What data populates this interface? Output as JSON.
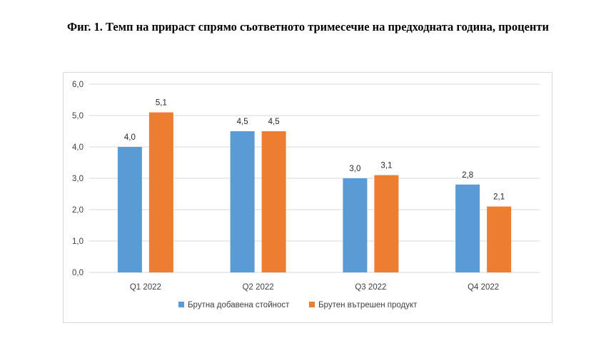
{
  "figure": {
    "title": "Фиг. 1. Темп на прираст спрямо съответното тримесечие на предходната година, проценти"
  },
  "chart_data": {
    "type": "bar",
    "title": "",
    "xlabel": "",
    "ylabel": "",
    "categories": [
      "Q1 2022",
      "Q2 2022",
      "Q3 2022",
      "Q4 2022"
    ],
    "series": [
      {
        "name": "Брутна добавена стойност",
        "color": "#5b9bd5",
        "values": [
          4.0,
          4.5,
          3.0,
          2.8
        ],
        "labels": [
          "4,0",
          "4,5",
          "3,0",
          "2,8"
        ]
      },
      {
        "name": "Брутен вътрешен продукт",
        "color": "#ed7d31",
        "values": [
          5.1,
          4.5,
          3.1,
          2.1
        ],
        "labels": [
          "5,1",
          "4,5",
          "3,1",
          "2,1"
        ]
      }
    ],
    "ylim": [
      0,
      6
    ],
    "yticks": [
      0,
      1,
      2,
      3,
      4,
      5,
      6
    ],
    "ytick_labels": [
      "0,0",
      "1,0",
      "2,0",
      "3,0",
      "4,0",
      "5,0",
      "6,0"
    ],
    "grid": true,
    "legend_position": "bottom",
    "gridline_color": "#d9d9d9"
  }
}
